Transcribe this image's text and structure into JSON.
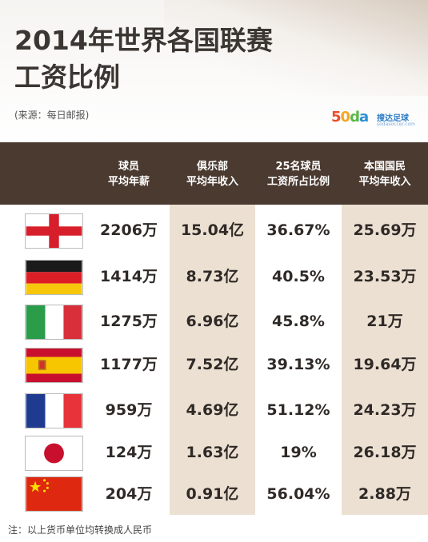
{
  "title_line1": "2014年世界各国联赛",
  "title_line2": "工资比例",
  "source": "(来源：每日邮报)",
  "logo": {
    "digits": [
      "5",
      "0",
      "d",
      "a"
    ],
    "name": "搜达足球",
    "sub": "sodasoccer.com"
  },
  "colors": {
    "header_bg": "#4a3a30",
    "shade": "#ece0d2",
    "text": "#2f2a27"
  },
  "chart_data": {
    "type": "table",
    "columns": [
      [
        "球员",
        "平均年薪"
      ],
      [
        "俱乐部",
        "平均年收入"
      ],
      [
        "25名球员",
        "工资所占比例"
      ],
      [
        "本国国民",
        "平均年收入"
      ]
    ],
    "rows": [
      {
        "flag": "england",
        "values": [
          "2206万",
          "15.04亿",
          "36.67%",
          "25.69万"
        ]
      },
      {
        "flag": "germany",
        "values": [
          "1414万",
          "8.73亿",
          "40.5%",
          "23.53万"
        ]
      },
      {
        "flag": "italy",
        "values": [
          "1275万",
          "6.96亿",
          "45.8%",
          "21万"
        ]
      },
      {
        "flag": "spain",
        "values": [
          "1177万",
          "7.52亿",
          "39.13%",
          "19.64万"
        ]
      },
      {
        "flag": "france",
        "values": [
          "959万",
          "4.69亿",
          "51.12%",
          "24.23万"
        ]
      },
      {
        "flag": "japan",
        "values": [
          "124万",
          "1.63亿",
          "19%",
          "26.18万"
        ]
      },
      {
        "flag": "china",
        "values": [
          "204万",
          "0.91亿",
          "56.04%",
          "2.88万"
        ]
      }
    ]
  },
  "footnote": "注：以上货币单位均转换成人民币"
}
